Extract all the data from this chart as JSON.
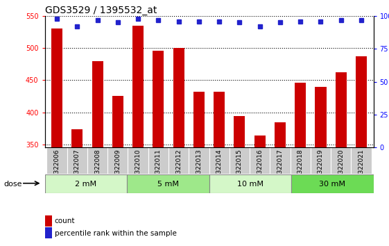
{
  "title": "GDS3529 / 1395532_at",
  "samples": [
    "GSM322006",
    "GSM322007",
    "GSM322008",
    "GSM322009",
    "GSM322010",
    "GSM322011",
    "GSM322012",
    "GSM322013",
    "GSM322014",
    "GSM322015",
    "GSM322016",
    "GSM322017",
    "GSM322018",
    "GSM322019",
    "GSM322020",
    "GSM322021"
  ],
  "counts": [
    530,
    374,
    480,
    426,
    535,
    496,
    500,
    432,
    432,
    394,
    364,
    384,
    446,
    440,
    462,
    487
  ],
  "percentile": [
    98,
    92,
    97,
    95,
    98,
    97,
    96,
    96,
    96,
    95,
    92,
    95,
    96,
    96,
    97,
    97
  ],
  "bar_color": "#cc0000",
  "dot_color": "#2222cc",
  "ylim_left": [
    345,
    550
  ],
  "ylim_right": [
    0,
    100
  ],
  "yticks_left": [
    350,
    400,
    450,
    500,
    550
  ],
  "yticks_right": [
    0,
    25,
    50,
    75,
    100
  ],
  "groups": [
    {
      "label": "2 mM",
      "start": 0,
      "end": 4,
      "color": "#d4f7c8"
    },
    {
      "label": "5 mM",
      "start": 4,
      "end": 8,
      "color": "#9ee88a"
    },
    {
      "label": "10 mM",
      "start": 8,
      "end": 12,
      "color": "#d4f7c8"
    },
    {
      "label": "30 mM",
      "start": 12,
      "end": 16,
      "color": "#6cdb55"
    }
  ],
  "dose_label": "dose",
  "legend_count_label": "count",
  "legend_pct_label": "percentile rank within the sample",
  "bg_color": "#ffffff",
  "tick_bg_color": "#cccccc",
  "title_fontsize": 10,
  "label_fontsize": 7.5
}
